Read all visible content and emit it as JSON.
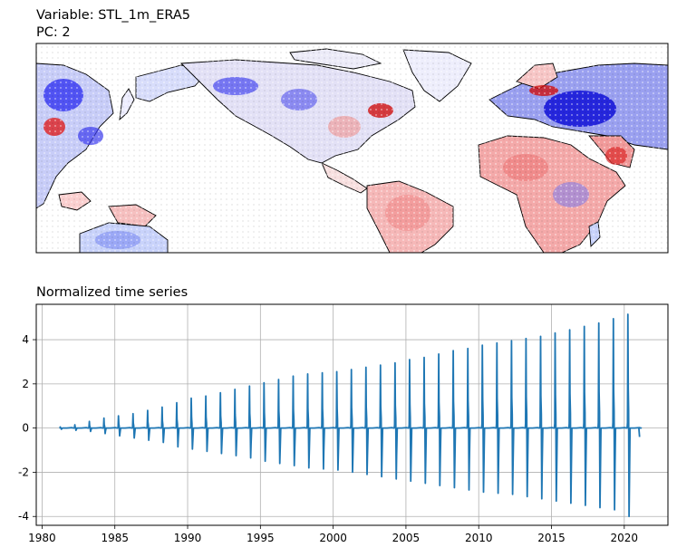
{
  "map_panel": {
    "variable_label": "Variable: STL_1m_ERA5",
    "pc_label": "PC: 2",
    "colormap": "bwr",
    "colors": {
      "negative": "#0000ff",
      "neutral": "#ffffff",
      "positive": "#ff0000",
      "coastline": "#000000"
    }
  },
  "chart_data": {
    "type": "line",
    "title": "Normalized time series",
    "xlabel": "",
    "ylabel": "",
    "xlim": [
      1979.6,
      2023.0
    ],
    "ylim": [
      -4.4,
      5.6
    ],
    "x_ticks": [
      1980,
      1985,
      1990,
      1995,
      2000,
      2005,
      2010,
      2015,
      2020
    ],
    "y_ticks": [
      -4,
      -2,
      0,
      2,
      4
    ],
    "grid": true,
    "color": "#1f77b4",
    "series": [
      {
        "start_year": 1981,
        "end_year": 2020,
        "annual_peak_max": [
          0.05,
          0.15,
          0.3,
          0.45,
          0.55,
          0.65,
          0.8,
          0.95,
          1.15,
          1.35,
          1.45,
          1.6,
          1.75,
          1.9,
          2.05,
          2.2,
          2.35,
          2.45,
          2.5,
          2.55,
          2.65,
          2.75,
          2.85,
          2.95,
          3.1,
          3.2,
          3.35,
          3.5,
          3.6,
          3.75,
          3.85,
          3.95,
          4.05,
          4.15,
          4.3,
          4.45,
          4.6,
          4.75,
          4.95,
          5.15
        ],
        "annual_trough_min": [
          -0.05,
          -0.1,
          -0.15,
          -0.25,
          -0.35,
          -0.45,
          -0.55,
          -0.65,
          -0.85,
          -0.95,
          -1.05,
          -1.15,
          -1.25,
          -1.35,
          -1.5,
          -1.6,
          -1.7,
          -1.8,
          -1.85,
          -1.9,
          -2.0,
          -2.1,
          -2.2,
          -2.3,
          -2.4,
          -2.5,
          -2.6,
          -2.7,
          -2.8,
          -2.9,
          -2.95,
          -3.0,
          -3.1,
          -3.2,
          -3.3,
          -3.4,
          -3.5,
          -3.6,
          -3.7,
          -4.0
        ],
        "final_value": -0.4
      }
    ]
  }
}
